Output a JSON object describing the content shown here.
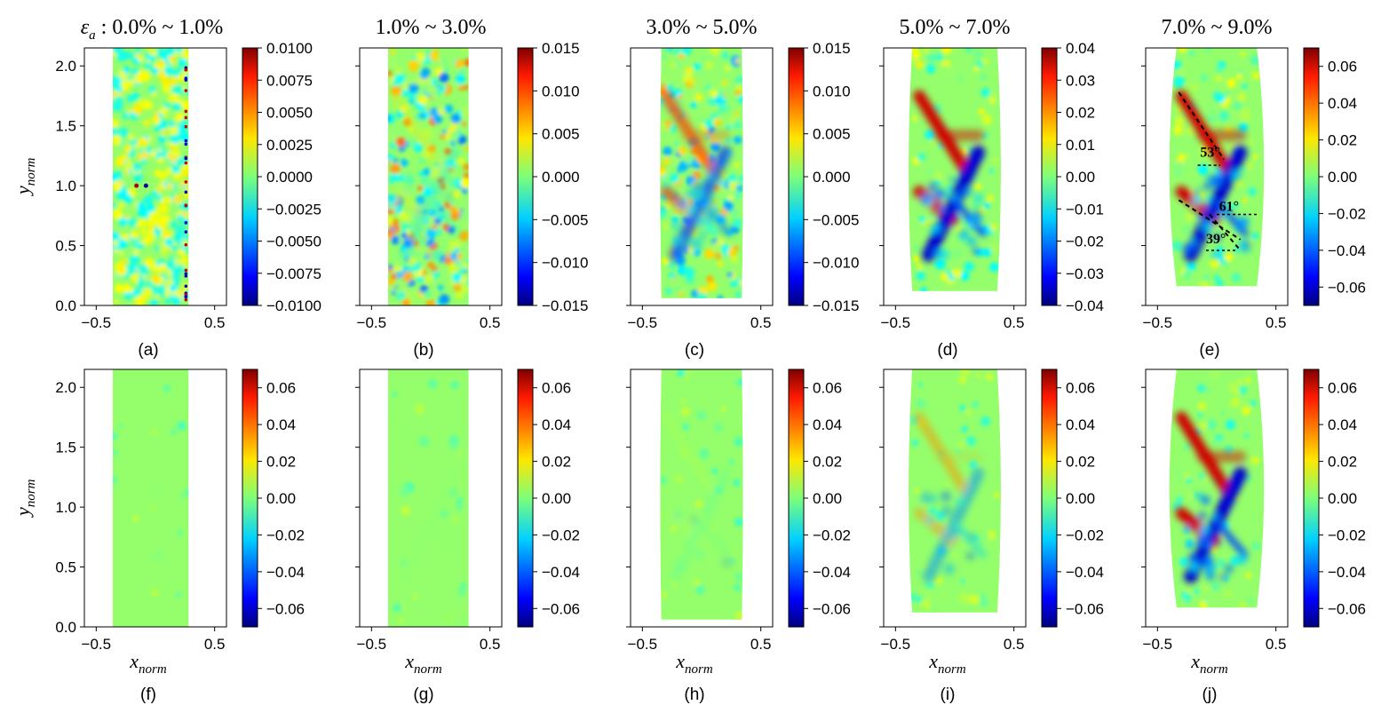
{
  "figure": {
    "strain_symbol": "ε",
    "strain_subscript": "a",
    "x_axis_label": "x",
    "x_axis_sub": "norm",
    "y_axis_label": "y",
    "y_axis_sub": "norm"
  },
  "chart_data": [
    {
      "type": "heatmap",
      "panel": "(a)",
      "title": " : 0.0% ~ 1.0%",
      "row": "top",
      "has_strain_symbol": true,
      "xticks": [
        "-0.5",
        "0.5"
      ],
      "yticks": [
        "0.0",
        "0.5",
        "1.0",
        "1.5",
        "2.0"
      ],
      "show_yticks": true,
      "xlim": [
        -0.6,
        0.6
      ],
      "ylim": [
        0.0,
        2.15
      ],
      "specimen": {
        "x_left": -0.36,
        "x_right": 0.28,
        "y_bottom": 0.0,
        "y_top": 2.15,
        "bulge": 0.0
      },
      "colorbar": {
        "ticks": [
          "0.0100",
          "0.0075",
          "0.0050",
          "0.0025",
          "0.0000",
          "-0.0025",
          "-0.0050",
          "-0.0075",
          "-0.0100"
        ],
        "range": [
          -0.01,
          0.01
        ]
      },
      "features": {
        "noise": 1.0,
        "bands": 0.0
      }
    },
    {
      "type": "heatmap",
      "panel": "(b)",
      "title": "1.0% ~ 3.0%",
      "row": "top",
      "has_strain_symbol": false,
      "xticks": [
        "-0.5",
        "0.5"
      ],
      "yticks": [
        "0.0",
        "0.5",
        "1.0",
        "1.5",
        "2.0"
      ],
      "show_yticks": false,
      "xlim": [
        -0.6,
        0.6
      ],
      "ylim": [
        0.0,
        2.15
      ],
      "specimen": {
        "x_left": -0.36,
        "x_right": 0.32,
        "y_bottom": 0.0,
        "y_top": 2.15,
        "bulge": 0.0
      },
      "colorbar": {
        "ticks": [
          "0.015",
          "0.010",
          "0.005",
          "0.000",
          "-0.005",
          "-0.010",
          "-0.015"
        ],
        "range": [
          -0.015,
          0.015
        ]
      },
      "features": {
        "noise": 0.8,
        "bands": 0.35
      }
    },
    {
      "type": "heatmap",
      "panel": "(c)",
      "title": "3.0% ~ 5.0%",
      "row": "top",
      "has_strain_symbol": false,
      "xticks": [
        "-0.5",
        "0.5"
      ],
      "yticks": [
        "0.0",
        "0.5",
        "1.0",
        "1.5",
        "2.0"
      ],
      "show_yticks": false,
      "xlim": [
        -0.6,
        0.6
      ],
      "ylim": [
        0.0,
        2.15
      ],
      "specimen": {
        "x_left": -0.34,
        "x_right": 0.34,
        "y_bottom": 0.06,
        "y_top": 2.15,
        "bulge": 0.01
      },
      "colorbar": {
        "ticks": [
          "0.015",
          "0.010",
          "0.005",
          "0.000",
          "-0.005",
          "-0.010",
          "-0.015"
        ],
        "range": [
          -0.015,
          0.015
        ]
      },
      "features": {
        "noise": 0.6,
        "bands": 0.75
      }
    },
    {
      "type": "heatmap",
      "panel": "(d)",
      "title": "5.0% ~ 7.0%",
      "row": "top",
      "has_strain_symbol": false,
      "xticks": [
        "-0.5",
        "0.5"
      ],
      "yticks": [
        "0.0",
        "0.5",
        "1.0",
        "1.5",
        "2.0"
      ],
      "show_yticks": false,
      "xlim": [
        -0.6,
        0.6
      ],
      "ylim": [
        0.0,
        2.15
      ],
      "specimen": {
        "x_left": -0.36,
        "x_right": 0.36,
        "y_bottom": 0.12,
        "y_top": 2.15,
        "bulge": 0.03
      },
      "colorbar": {
        "ticks": [
          "0.04",
          "0.03",
          "0.02",
          "0.01",
          "0.00",
          "-0.01",
          "-0.02",
          "-0.03",
          "-0.04"
        ],
        "range": [
          -0.04,
          0.04
        ]
      },
      "features": {
        "noise": 0.3,
        "bands": 1.0
      }
    },
    {
      "type": "heatmap",
      "panel": "(e)",
      "title": "7.0% ~ 9.0%",
      "row": "top",
      "has_strain_symbol": false,
      "xticks": [
        "-0.5",
        "0.5"
      ],
      "yticks": [
        "0.0",
        "0.5",
        "1.0",
        "1.5",
        "2.0"
      ],
      "show_yticks": false,
      "xlim": [
        -0.6,
        0.6
      ],
      "ylim": [
        0.0,
        2.15
      ],
      "specimen": {
        "x_left": -0.34,
        "x_right": 0.34,
        "y_bottom": 0.16,
        "y_top": 2.15,
        "bulge": 0.06
      },
      "colorbar": {
        "ticks": [
          "0.06",
          "0.04",
          "0.02",
          "0.00",
          "-0.02",
          "-0.04",
          "-0.06"
        ],
        "range": [
          -0.07,
          0.07
        ]
      },
      "features": {
        "noise": 0.3,
        "bands": 1.0
      },
      "annotations": [
        {
          "label": "53°",
          "line": [
            [
              -0.32,
              1.78
            ],
            [
              0.06,
              1.22
            ]
          ],
          "ref": [
            [
              -0.16,
              1.17
            ],
            [
              0.03,
              1.17
            ]
          ],
          "label_at": [
            -0.14,
            1.24
          ]
        },
        {
          "label": "61°",
          "line": [
            [
              -0.32,
              0.88
            ],
            [
              0.2,
              0.55
            ]
          ],
          "ref": [
            [
              0.0,
              0.76
            ],
            [
              0.36,
              0.76
            ]
          ],
          "label_at": [
            0.02,
            0.79
          ]
        },
        {
          "label": "39°",
          "line": [
            [
              -0.06,
              0.76
            ],
            [
              0.2,
              0.46
            ]
          ],
          "ref": [
            [
              -0.09,
              0.46
            ],
            [
              0.18,
              0.46
            ]
          ],
          "label_at": [
            -0.09,
            0.52
          ]
        }
      ]
    },
    {
      "type": "heatmap",
      "panel": "(f)",
      "title": "",
      "row": "bottom",
      "has_strain_symbol": false,
      "xticks": [
        "-0.5",
        "0.5"
      ],
      "yticks": [
        "0.0",
        "0.5",
        "1.0",
        "1.5",
        "2.0"
      ],
      "show_yticks": true,
      "xlim": [
        -0.6,
        0.6
      ],
      "ylim": [
        0.0,
        2.15
      ],
      "specimen": {
        "x_left": -0.36,
        "x_right": 0.28,
        "y_bottom": 0.0,
        "y_top": 2.15,
        "bulge": 0.0
      },
      "colorbar": {
        "ticks": [
          "0.06",
          "0.04",
          "0.02",
          "0.00",
          "-0.02",
          "-0.04",
          "-0.06"
        ],
        "range": [
          -0.07,
          0.07
        ]
      },
      "features": {
        "noise": 0.05,
        "bands": 0.0
      }
    },
    {
      "type": "heatmap",
      "panel": "(g)",
      "title": "",
      "row": "bottom",
      "has_strain_symbol": false,
      "xticks": [
        "-0.5",
        "0.5"
      ],
      "yticks": [
        "0.0",
        "0.5",
        "1.0",
        "1.5",
        "2.0"
      ],
      "show_yticks": false,
      "xlim": [
        -0.6,
        0.6
      ],
      "ylim": [
        0.0,
        2.15
      ],
      "specimen": {
        "x_left": -0.36,
        "x_right": 0.32,
        "y_bottom": 0.0,
        "y_top": 2.15,
        "bulge": 0.0
      },
      "colorbar": {
        "ticks": [
          "0.06",
          "0.04",
          "0.02",
          "0.00",
          "-0.02",
          "-0.04",
          "-0.06"
        ],
        "range": [
          -0.07,
          0.07
        ]
      },
      "features": {
        "noise": 0.07,
        "bands": 0.05
      }
    },
    {
      "type": "heatmap",
      "panel": "(h)",
      "title": "",
      "row": "bottom",
      "has_strain_symbol": false,
      "xticks": [
        "-0.5",
        "0.5"
      ],
      "yticks": [
        "0.0",
        "0.5",
        "1.0",
        "1.5",
        "2.0"
      ],
      "show_yticks": false,
      "xlim": [
        -0.6,
        0.6
      ],
      "ylim": [
        0.0,
        2.15
      ],
      "specimen": {
        "x_left": -0.34,
        "x_right": 0.34,
        "y_bottom": 0.06,
        "y_top": 2.15,
        "bulge": 0.01
      },
      "colorbar": {
        "ticks": [
          "0.06",
          "0.04",
          "0.02",
          "0.00",
          "-0.02",
          "-0.04",
          "-0.06"
        ],
        "range": [
          -0.07,
          0.07
        ]
      },
      "features": {
        "noise": 0.1,
        "bands": 0.18
      }
    },
    {
      "type": "heatmap",
      "panel": "(i)",
      "title": "",
      "row": "bottom",
      "has_strain_symbol": false,
      "xticks": [
        "-0.5",
        "0.5"
      ],
      "yticks": [
        "0.0",
        "0.5",
        "1.0",
        "1.5",
        "2.0"
      ],
      "show_yticks": false,
      "xlim": [
        -0.6,
        0.6
      ],
      "ylim": [
        0.0,
        2.15
      ],
      "specimen": {
        "x_left": -0.36,
        "x_right": 0.36,
        "y_bottom": 0.12,
        "y_top": 2.15,
        "bulge": 0.03
      },
      "colorbar": {
        "ticks": [
          "0.06",
          "0.04",
          "0.02",
          "0.00",
          "-0.02",
          "-0.04",
          "-0.06"
        ],
        "range": [
          -0.07,
          0.07
        ]
      },
      "features": {
        "noise": 0.15,
        "bands": 0.55
      }
    },
    {
      "type": "heatmap",
      "panel": "(j)",
      "title": "",
      "row": "bottom",
      "has_strain_symbol": false,
      "xticks": [
        "-0.5",
        "0.5"
      ],
      "yticks": [
        "0.0",
        "0.5",
        "1.0",
        "1.5",
        "2.0"
      ],
      "show_yticks": false,
      "xlim": [
        -0.6,
        0.6
      ],
      "ylim": [
        0.0,
        2.15
      ],
      "specimen": {
        "x_left": -0.34,
        "x_right": 0.34,
        "y_bottom": 0.16,
        "y_top": 2.15,
        "bulge": 0.06
      },
      "colorbar": {
        "ticks": [
          "0.06",
          "0.04",
          "0.02",
          "0.00",
          "-0.02",
          "-0.04",
          "-0.06"
        ],
        "range": [
          -0.07,
          0.07
        ]
      },
      "features": {
        "noise": 0.2,
        "bands": 1.0
      }
    }
  ]
}
